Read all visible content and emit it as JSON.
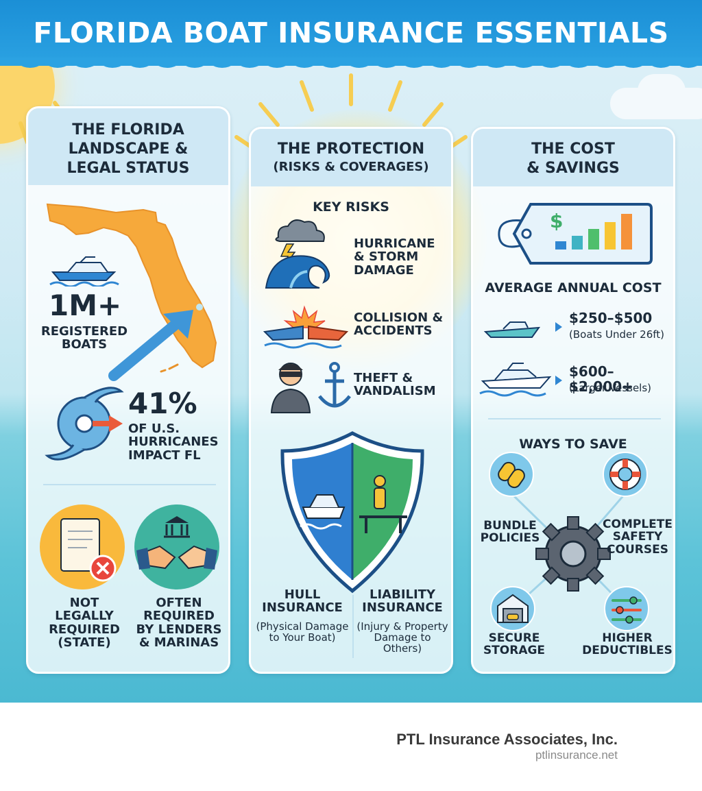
{
  "title": "FLORIDA BOAT INSURANCE ESSENTIALS",
  "colors": {
    "banner": "#1b8fd6",
    "panel_header": "#cfe8f5",
    "accent_orange": "#f5a23c",
    "accent_teal": "#3fb3c4"
  },
  "landscape": {
    "heading": [
      "THE FLORIDA",
      "LANDSCAPE &",
      "LEGAL STATUS"
    ],
    "boats_stat": "1M+",
    "boats_label": [
      "REGISTERED",
      "BOATS"
    ],
    "hurricane_stat": "41%",
    "hurricane_label": [
      "OF U.S.",
      "HURRICANES",
      "IMPACT FL"
    ],
    "not_required": [
      "NOT",
      "LEGALLY",
      "REQUIRED",
      "(STATE)"
    ],
    "often_required": [
      "OFTEN",
      "REQUIRED",
      "BY LENDERS",
      "& MARINAS"
    ]
  },
  "protection": {
    "heading": [
      "THE PROTECTION",
      "(RISKS & COVERAGES)"
    ],
    "key_risks_title": "KEY RISKS",
    "risks": [
      {
        "label": [
          "HURRICANE",
          "& STORM",
          "DAMAGE"
        ],
        "icon": "storm-wave-icon"
      },
      {
        "label": [
          "COLLISION &",
          "ACCIDENTS"
        ],
        "icon": "collision-icon"
      },
      {
        "label": [
          "THEFT &",
          "VANDALISM"
        ],
        "icon": "thief-anchor-icon"
      }
    ],
    "hull_title": [
      "HULL",
      "INSURANCE"
    ],
    "hull_desc": [
      "(Physical Damage",
      "to Your Boat)"
    ],
    "liability_title": [
      "LIABILITY",
      "INSURANCE"
    ],
    "liability_desc": [
      "(Injury & Property",
      "Damage to",
      "Others)"
    ]
  },
  "cost": {
    "heading": [
      "THE COST",
      "& SAVINGS"
    ],
    "avg_title": "AVERAGE ANNUAL COST",
    "tiers": [
      {
        "price": "$250–$500",
        "desc": "(Boats Under 26ft)"
      },
      {
        "price": "$600–$2,000+",
        "desc": "(Larger Vessels)"
      }
    ],
    "save_title": "WAYS TO SAVE",
    "save": {
      "bundle": [
        "BUNDLE",
        "POLICIES"
      ],
      "safety": [
        "COMPLETE",
        "SAFETY",
        "COURSES"
      ],
      "storage": [
        "SECURE",
        "STORAGE"
      ],
      "deductibles": [
        "HIGHER",
        "DEDUCTIBLES"
      ]
    }
  },
  "footer": {
    "company": "PTL Insurance Associates, Inc.",
    "url": "ptlinsurance.net"
  }
}
